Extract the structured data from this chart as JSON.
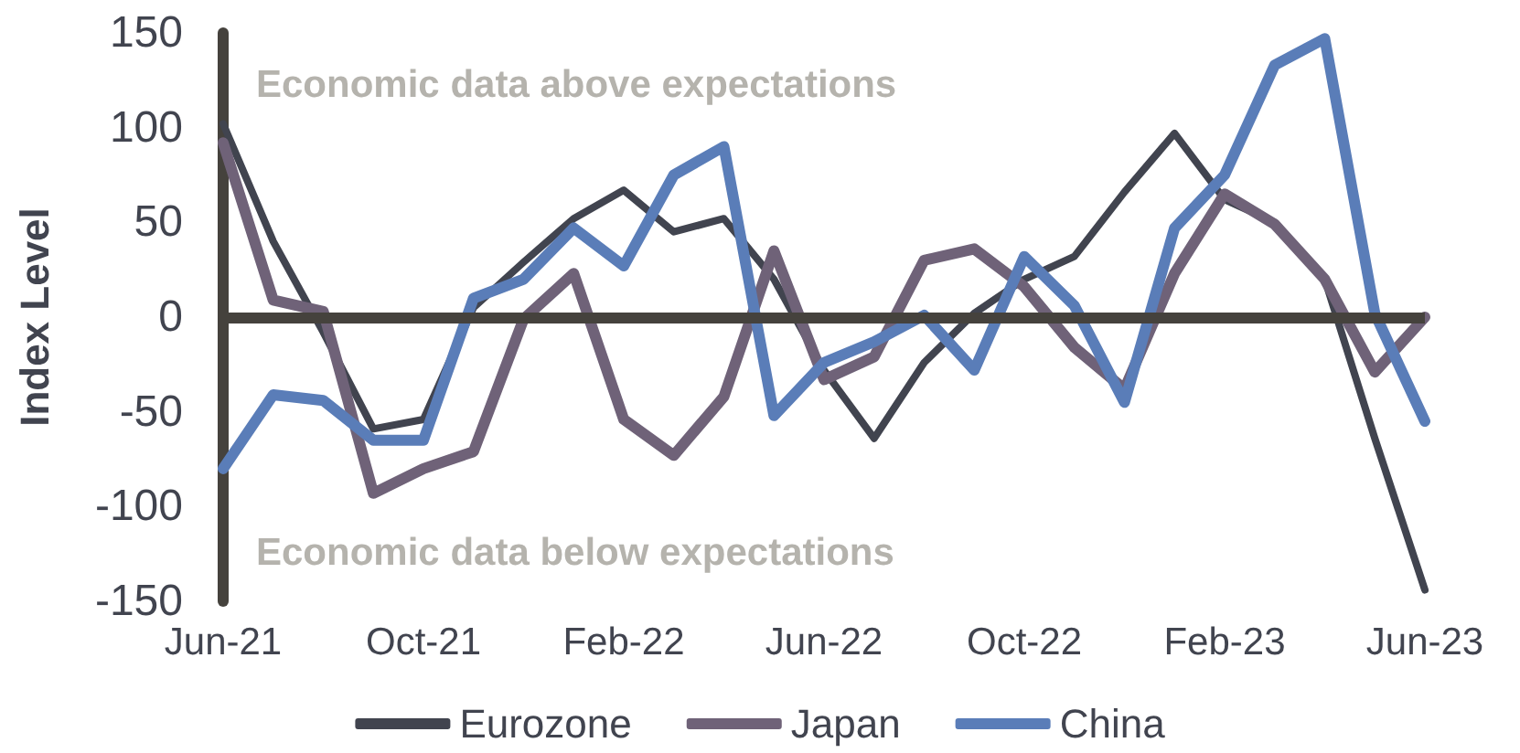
{
  "chart_data": {
    "type": "line",
    "ylabel": "Index Level",
    "categories": [
      "Jun-21",
      null,
      null,
      null,
      "Oct-21",
      null,
      null,
      null,
      "Feb-22",
      null,
      null,
      null,
      "Jun-22",
      null,
      null,
      null,
      "Oct-22",
      null,
      null,
      null,
      "Feb-23",
      null,
      null,
      null,
      "Jun-23"
    ],
    "series": [
      {
        "name": "Eurozone",
        "color": "#41444f",
        "values": [
          102,
          40,
          -8,
          -59,
          -54,
          5,
          29,
          52,
          67,
          45,
          52,
          20,
          -28,
          -64,
          -24,
          2,
          20,
          32,
          66,
          97,
          62,
          50,
          20,
          -64,
          -144
        ]
      },
      {
        "name": "Japan",
        "color": "#6f6278",
        "values": [
          92,
          9,
          3,
          -93,
          -80,
          -71,
          -1,
          23,
          -54,
          -73,
          -42,
          35,
          -33,
          -21,
          30,
          36,
          16,
          -16,
          -38,
          23,
          65,
          49,
          20,
          -29,
          0
        ]
      },
      {
        "name": "China",
        "color": "#5a7db8",
        "values": [
          -80,
          -41,
          -44,
          -65,
          -65,
          10,
          20,
          47,
          27,
          75,
          90,
          -52,
          -24,
          -13,
          1,
          -28,
          32,
          6,
          -45,
          47,
          75,
          133,
          147,
          2,
          -55
        ]
      }
    ],
    "ylim": [
      -150,
      150
    ],
    "yticks": [
      -150,
      -100,
      -50,
      0,
      50,
      100,
      150
    ],
    "ref_lines": [
      {
        "axis": "y",
        "value": 0,
        "color": "#45423d"
      }
    ],
    "annotations": [
      "Economic data above expectations",
      "Economic data below expectations"
    ],
    "grid": false,
    "legend": "bottom",
    "marker": "none",
    "line_style": "solid"
  }
}
